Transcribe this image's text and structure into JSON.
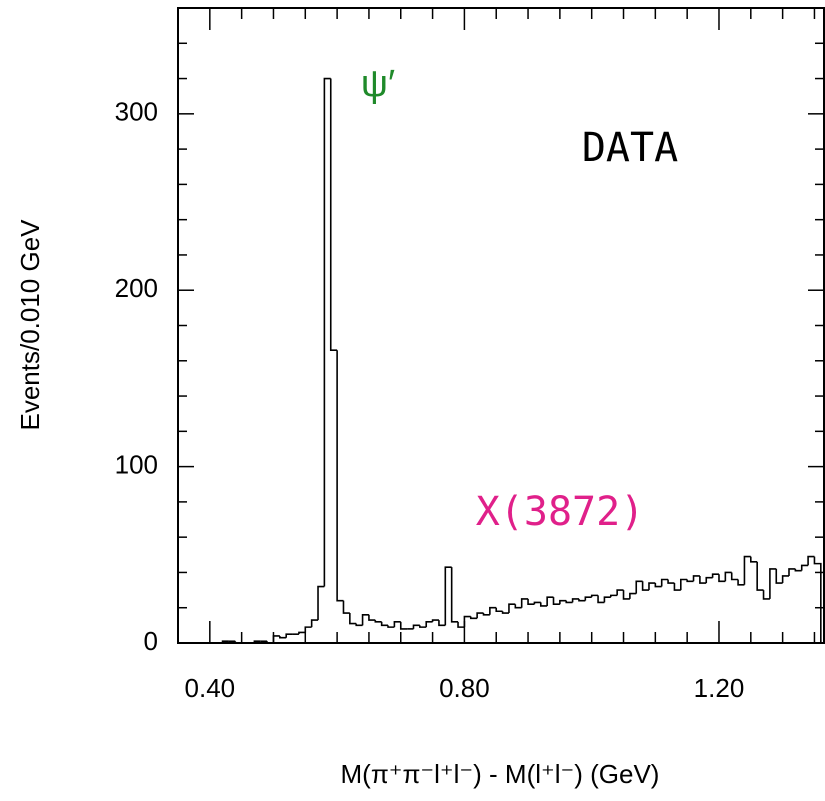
{
  "chart_data": {
    "type": "histogram",
    "x_label": "M(π⁺π⁻l⁺l⁻) - M(l⁺l⁻) (GeV)",
    "y_label": "Events/0.010 GeV",
    "annotations": [
      {
        "text": "ψ′",
        "color": "#1f8a2a"
      },
      {
        "text": "DATA",
        "color": "#000000"
      },
      {
        "text": "X(3872)",
        "color": "#e0208a"
      }
    ],
    "color": "#000000",
    "bins": [
      0.35,
      0.36,
      0.37,
      0.38,
      0.39,
      0.4,
      0.41,
      0.42,
      0.43,
      0.44,
      0.45,
      0.46,
      0.47,
      0.48,
      0.49,
      0.5,
      0.51,
      0.52,
      0.53,
      0.54,
      0.55,
      0.56,
      0.57,
      0.58,
      0.59,
      0.6,
      0.61,
      0.62,
      0.63,
      0.64,
      0.65,
      0.66,
      0.67,
      0.68,
      0.69,
      0.7,
      0.71,
      0.72,
      0.73,
      0.74,
      0.75,
      0.76,
      0.77,
      0.78,
      0.79,
      0.8,
      0.81,
      0.82,
      0.83,
      0.84,
      0.85,
      0.86,
      0.87,
      0.88,
      0.89,
      0.9,
      0.91,
      0.92,
      0.93,
      0.94,
      0.95,
      0.96,
      0.97,
      0.98,
      0.99,
      1.0,
      1.01,
      1.02,
      1.03,
      1.04,
      1.05,
      1.06,
      1.07,
      1.08,
      1.09,
      1.1,
      1.11,
      1.12,
      1.13,
      1.14,
      1.15,
      1.16,
      1.17,
      1.18,
      1.19,
      1.2,
      1.21,
      1.22,
      1.23,
      1.24,
      1.25,
      1.26,
      1.27,
      1.28,
      1.29,
      1.3,
      1.31,
      1.32,
      1.33,
      1.34,
      1.35,
      1.36
    ],
    "values": [
      0,
      0,
      0,
      0,
      0,
      0,
      0,
      1,
      1,
      0,
      0,
      0,
      1,
      1,
      0,
      4,
      3,
      5,
      5,
      6,
      9,
      13,
      32,
      320,
      166,
      24,
      17,
      11,
      10,
      16,
      13,
      12,
      10,
      9,
      12,
      8,
      8,
      10,
      9,
      12,
      13,
      10,
      43,
      12,
      9,
      15,
      14,
      17,
      16,
      20,
      18,
      17,
      22,
      20,
      25,
      22,
      23,
      21,
      26,
      22,
      24,
      23,
      25,
      24,
      26,
      27,
      23,
      26,
      27,
      30,
      25,
      28,
      35,
      30,
      34,
      32,
      36,
      34,
      30,
      36,
      35,
      38,
      34,
      37,
      39,
      35,
      40,
      36,
      33,
      49,
      46,
      30,
      25,
      42,
      34,
      38,
      42,
      41,
      44,
      49,
      45
    ],
    "xlim": [
      0.35,
      1.365
    ],
    "ylim": [
      0,
      360
    ],
    "xticks": [
      {
        "value": 0.4,
        "label": "0.40"
      },
      {
        "value": 0.8,
        "label": "0.80"
      },
      {
        "value": 1.2,
        "label": "1.20"
      }
    ],
    "yticks": [
      0,
      100,
      200,
      300
    ],
    "xminorticks": [
      0.45,
      0.5,
      0.55,
      0.6,
      0.65,
      0.7,
      0.75,
      0.85,
      0.9,
      0.95,
      1.0,
      1.05,
      1.1,
      1.15,
      1.25,
      1.3,
      1.35
    ],
    "yminorticks": [
      20,
      40,
      60,
      80,
      120,
      140,
      160,
      180,
      220,
      240,
      260,
      280,
      320,
      340
    ]
  }
}
